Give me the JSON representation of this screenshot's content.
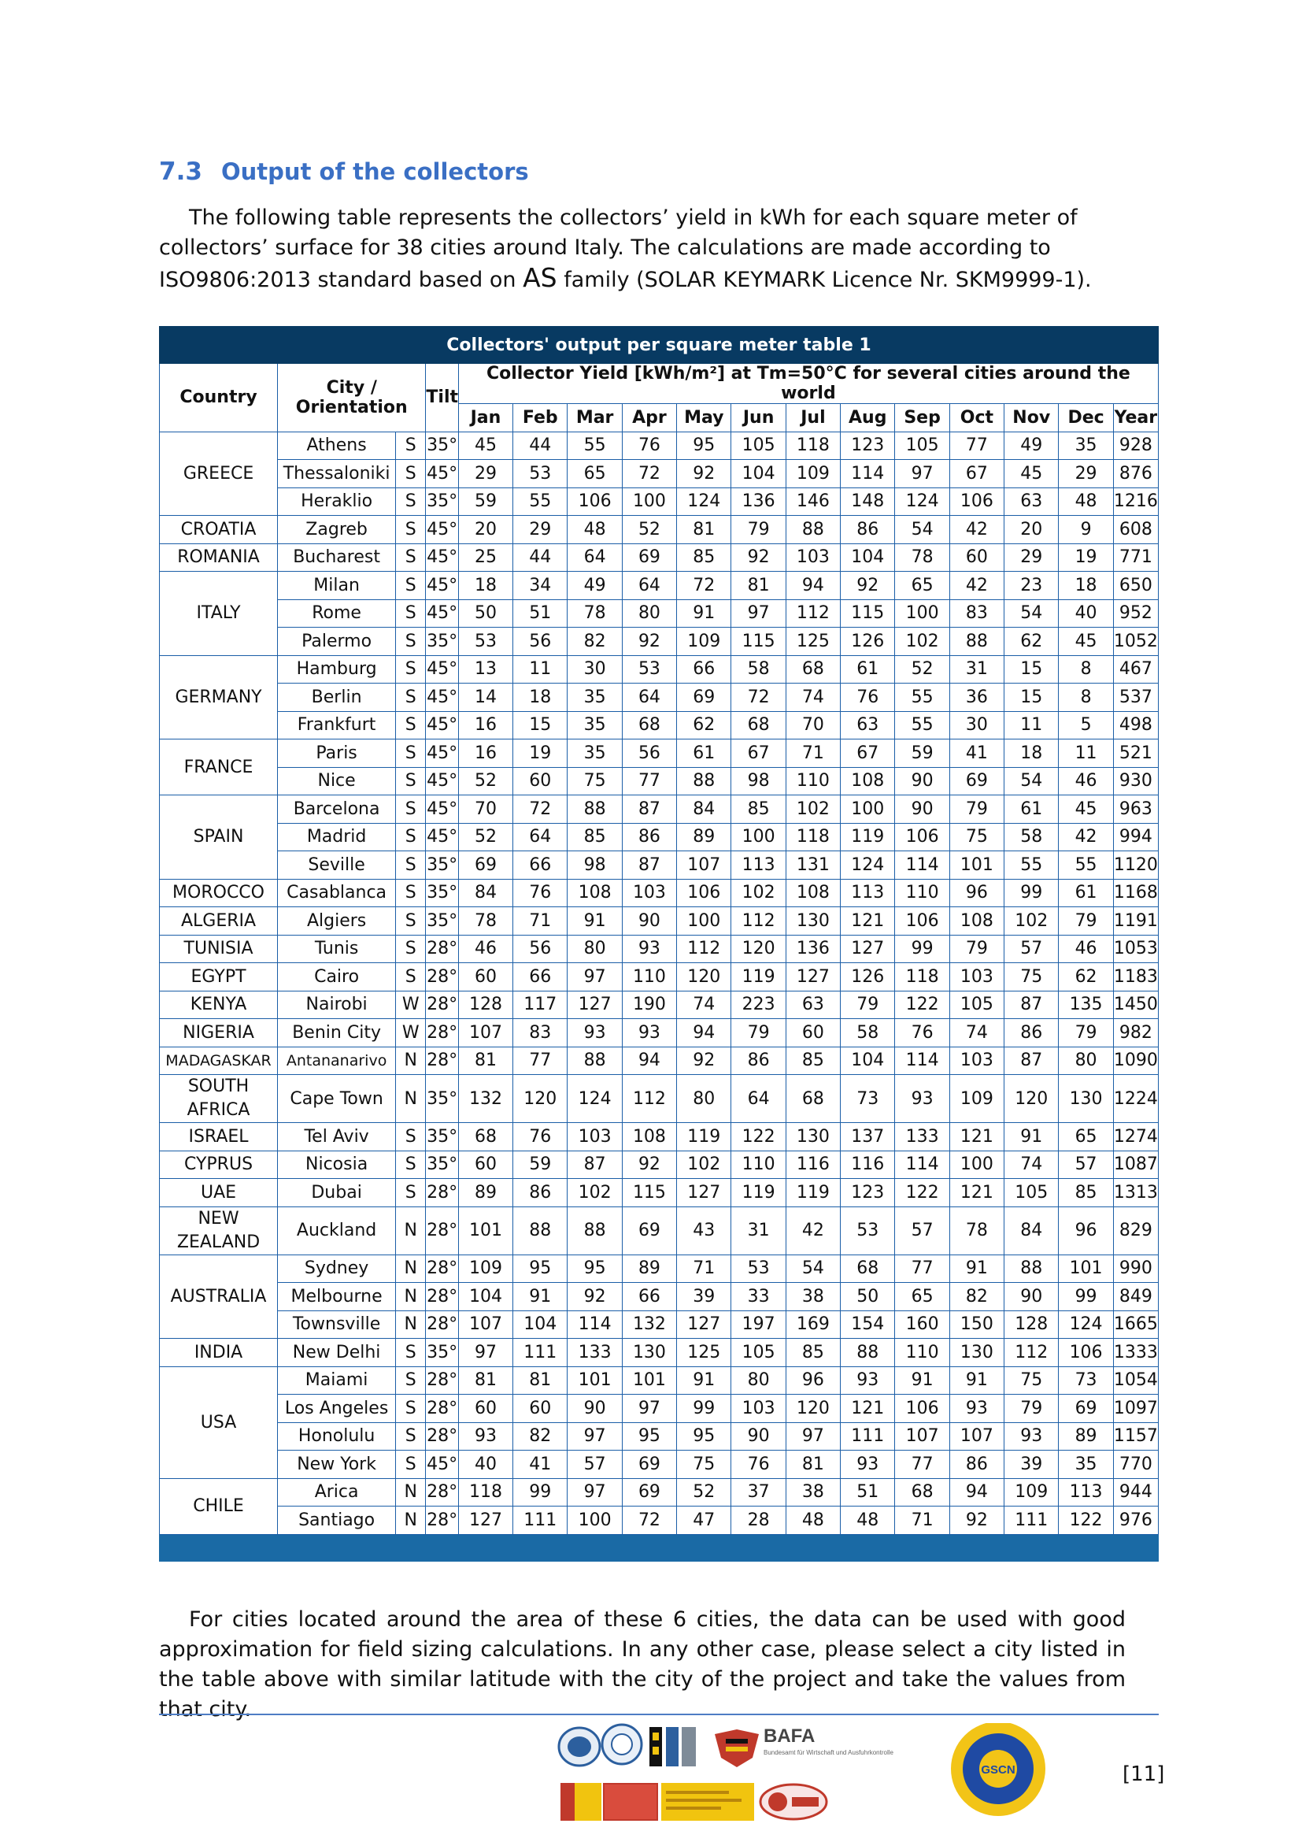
{
  "section": {
    "number": "7.3",
    "title": "Output of the collectors"
  },
  "intro": {
    "line1": "The following table represents the collectors’ yield in kWh for each square meter of collectors’ surface for 38 cities around Italy. The calculations are made according to ISO9806:2013 standard based on ",
    "family": "AS",
    "line2": " family (SOLAR KEYMARK Licence Nr. SKM9999-1)."
  },
  "table": {
    "title": "Collectors' output per square meter table 1",
    "headers": {
      "country": "Country",
      "city": "City / Orientation",
      "tilt": "Tilt",
      "yield": "Collector Yield [kWh/m²] at Tm=50°C for several cities around the world",
      "months": [
        "Jan",
        "Feb",
        "Mar",
        "Apr",
        "May",
        "Jun",
        "Jul",
        "Aug",
        "Sep",
        "Oct",
        "Nov",
        "Dec",
        "Year"
      ]
    },
    "groups": [
      {
        "country": "GREECE",
        "rows": [
          {
            "city": "Athens",
            "orient": "S",
            "tilt": "35°",
            "values": [
              45,
              44,
              55,
              76,
              95,
              105,
              118,
              123,
              105,
              77,
              49,
              35,
              928
            ]
          },
          {
            "city": "Thessaloniki",
            "orient": "S",
            "tilt": "45°",
            "values": [
              29,
              53,
              65,
              72,
              92,
              104,
              109,
              114,
              97,
              67,
              45,
              29,
              876
            ]
          },
          {
            "city": "Heraklio",
            "orient": "S",
            "tilt": "35°",
            "values": [
              59,
              55,
              106,
              100,
              124,
              136,
              146,
              148,
              124,
              106,
              63,
              48,
              1216
            ]
          }
        ]
      },
      {
        "country": "CROATIA",
        "rows": [
          {
            "city": "Zagreb",
            "orient": "S",
            "tilt": "45°",
            "values": [
              20,
              29,
              48,
              52,
              81,
              79,
              88,
              86,
              54,
              42,
              20,
              9,
              608
            ]
          }
        ]
      },
      {
        "country": "ROMANIA",
        "rows": [
          {
            "city": "Bucharest",
            "orient": "S",
            "tilt": "45°",
            "values": [
              25,
              44,
              64,
              69,
              85,
              92,
              103,
              104,
              78,
              60,
              29,
              19,
              771
            ]
          }
        ]
      },
      {
        "country": "ITALY",
        "rows": [
          {
            "city": "Milan",
            "orient": "S",
            "tilt": "45°",
            "values": [
              18,
              34,
              49,
              64,
              72,
              81,
              94,
              92,
              65,
              42,
              23,
              18,
              650
            ]
          },
          {
            "city": "Rome",
            "orient": "S",
            "tilt": "45°",
            "values": [
              50,
              51,
              78,
              80,
              91,
              97,
              112,
              115,
              100,
              83,
              54,
              40,
              952
            ]
          },
          {
            "city": "Palermo",
            "orient": "S",
            "tilt": "35°",
            "values": [
              53,
              56,
              82,
              92,
              109,
              115,
              125,
              126,
              102,
              88,
              62,
              45,
              1052
            ]
          }
        ]
      },
      {
        "country": "GERMANY",
        "rows": [
          {
            "city": "Hamburg",
            "orient": "S",
            "tilt": "45°",
            "values": [
              13,
              11,
              30,
              53,
              66,
              58,
              68,
              61,
              52,
              31,
              15,
              8,
              467
            ]
          },
          {
            "city": "Berlin",
            "orient": "S",
            "tilt": "45°",
            "values": [
              14,
              18,
              35,
              64,
              69,
              72,
              74,
              76,
              55,
              36,
              15,
              8,
              537
            ]
          },
          {
            "city": "Frankfurt",
            "orient": "S",
            "tilt": "45°",
            "values": [
              16,
              15,
              35,
              68,
              62,
              68,
              70,
              63,
              55,
              30,
              11,
              5,
              498
            ]
          }
        ]
      },
      {
        "country": "FRANCE",
        "rows": [
          {
            "city": "Paris",
            "orient": "S",
            "tilt": "45°",
            "values": [
              16,
              19,
              35,
              56,
              61,
              67,
              71,
              67,
              59,
              41,
              18,
              11,
              521
            ]
          },
          {
            "city": "Nice",
            "orient": "S",
            "tilt": "45°",
            "values": [
              52,
              60,
              75,
              77,
              88,
              98,
              110,
              108,
              90,
              69,
              54,
              46,
              930
            ]
          }
        ]
      },
      {
        "country": "SPAIN",
        "rows": [
          {
            "city": "Barcelona",
            "orient": "S",
            "tilt": "45°",
            "values": [
              70,
              72,
              88,
              87,
              84,
              85,
              102,
              100,
              90,
              79,
              61,
              45,
              963
            ]
          },
          {
            "city": "Madrid",
            "orient": "S",
            "tilt": "45°",
            "values": [
              52,
              64,
              85,
              86,
              89,
              100,
              118,
              119,
              106,
              75,
              58,
              42,
              994
            ]
          },
          {
            "city": "Seville",
            "orient": "S",
            "tilt": "35°",
            "values": [
              69,
              66,
              98,
              87,
              107,
              113,
              131,
              124,
              114,
              101,
              55,
              55,
              1120
            ]
          }
        ]
      },
      {
        "country": "MOROCCO",
        "rows": [
          {
            "city": "Casablanca",
            "orient": "S",
            "tilt": "35°",
            "values": [
              84,
              76,
              108,
              103,
              106,
              102,
              108,
              113,
              110,
              96,
              99,
              61,
              1168
            ]
          }
        ]
      },
      {
        "country": "ALGERIA",
        "rows": [
          {
            "city": "Algiers",
            "orient": "S",
            "tilt": "35°",
            "values": [
              78,
              71,
              91,
              90,
              100,
              112,
              130,
              121,
              106,
              108,
              102,
              79,
              1191
            ]
          }
        ]
      },
      {
        "country": "TUNISIA",
        "rows": [
          {
            "city": "Tunis",
            "orient": "S",
            "tilt": "28°",
            "values": [
              46,
              56,
              80,
              93,
              112,
              120,
              136,
              127,
              99,
              79,
              57,
              46,
              1053
            ]
          }
        ]
      },
      {
        "country": "EGYPT",
        "rows": [
          {
            "city": "Cairo",
            "orient": "S",
            "tilt": "28°",
            "values": [
              60,
              66,
              97,
              110,
              120,
              119,
              127,
              126,
              118,
              103,
              75,
              62,
              1183
            ]
          }
        ]
      },
      {
        "country": "KENYA",
        "rows": [
          {
            "city": "Nairobi",
            "orient": "W",
            "tilt": "28°",
            "values": [
              128,
              117,
              127,
              190,
              74,
              223,
              63,
              79,
              122,
              105,
              87,
              135,
              1450
            ]
          }
        ]
      },
      {
        "country": "NIGERIA",
        "rows": [
          {
            "city": "Benin City",
            "orient": "W",
            "tilt": "28°",
            "values": [
              107,
              83,
              93,
              93,
              94,
              79,
              60,
              58,
              76,
              74,
              86,
              79,
              982
            ]
          }
        ]
      },
      {
        "country": "MADAGASKAR",
        "small": true,
        "rows": [
          {
            "city": "Antananarivo",
            "orient": "N",
            "tilt": "28°",
            "values": [
              81,
              77,
              88,
              94,
              92,
              86,
              85,
              104,
              114,
              103,
              87,
              80,
              1090
            ]
          }
        ]
      },
      {
        "country": "SOUTH AFRICA",
        "tall": true,
        "rows": [
          {
            "city": "Cape Town",
            "orient": "N",
            "tilt": "35°",
            "values": [
              132,
              120,
              124,
              112,
              80,
              64,
              68,
              73,
              93,
              109,
              120,
              130,
              1224
            ]
          }
        ]
      },
      {
        "country": "ISRAEL",
        "rows": [
          {
            "city": "Tel Aviv",
            "orient": "S",
            "tilt": "35°",
            "values": [
              68,
              76,
              103,
              108,
              119,
              122,
              130,
              137,
              133,
              121,
              91,
              65,
              1274
            ]
          }
        ]
      },
      {
        "country": "CYPRUS",
        "rows": [
          {
            "city": "Nicosia",
            "orient": "S",
            "tilt": "35°",
            "values": [
              60,
              59,
              87,
              92,
              102,
              110,
              116,
              116,
              114,
              100,
              74,
              57,
              1087
            ]
          }
        ]
      },
      {
        "country": "UAE",
        "rows": [
          {
            "city": "Dubai",
            "orient": "S",
            "tilt": "28°",
            "values": [
              89,
              86,
              102,
              115,
              127,
              119,
              119,
              123,
              122,
              121,
              105,
              85,
              1313
            ]
          }
        ]
      },
      {
        "country": "NEW ZEALAND",
        "tall": true,
        "rows": [
          {
            "city": "Auckland",
            "orient": "N",
            "tilt": "28°",
            "values": [
              101,
              88,
              88,
              69,
              43,
              31,
              42,
              53,
              57,
              78,
              84,
              96,
              829
            ]
          }
        ]
      },
      {
        "country": "AUSTRALIA",
        "rows": [
          {
            "city": "Sydney",
            "orient": "N",
            "tilt": "28°",
            "values": [
              109,
              95,
              95,
              89,
              71,
              53,
              54,
              68,
              77,
              91,
              88,
              101,
              990
            ]
          },
          {
            "city": "Melbourne",
            "orient": "N",
            "tilt": "28°",
            "values": [
              104,
              91,
              92,
              66,
              39,
              33,
              38,
              50,
              65,
              82,
              90,
              99,
              849
            ]
          },
          {
            "city": "Townsville",
            "orient": "N",
            "tilt": "28°",
            "values": [
              107,
              104,
              114,
              132,
              127,
              197,
              169,
              154,
              160,
              150,
              128,
              124,
              1665
            ]
          }
        ]
      },
      {
        "country": "INDIA",
        "rows": [
          {
            "city": "New Delhi",
            "orient": "S",
            "tilt": "35°",
            "values": [
              97,
              111,
              133,
              130,
              125,
              105,
              85,
              88,
              110,
              130,
              112,
              106,
              1333
            ]
          }
        ]
      },
      {
        "country": "USA",
        "rows": [
          {
            "city": "Maiami",
            "orient": "S",
            "tilt": "28°",
            "values": [
              81,
              81,
              101,
              101,
              91,
              80,
              96,
              93,
              91,
              91,
              75,
              73,
              1054
            ]
          },
          {
            "city": "Los Angeles",
            "orient": "S",
            "tilt": "28°",
            "values": [
              60,
              60,
              90,
              97,
              99,
              103,
              120,
              121,
              106,
              93,
              79,
              69,
              1097
            ]
          },
          {
            "city": "Honolulu",
            "orient": "S",
            "tilt": "28°",
            "values": [
              93,
              82,
              97,
              95,
              95,
              90,
              97,
              111,
              107,
              107,
              93,
              89,
              1157
            ]
          },
          {
            "city": "New York",
            "orient": "S",
            "tilt": "45°",
            "values": [
              40,
              41,
              57,
              69,
              75,
              76,
              81,
              93,
              77,
              86,
              39,
              35,
              770
            ]
          }
        ]
      },
      {
        "country": "CHILE",
        "rows": [
          {
            "city": "Arica",
            "orient": "N",
            "tilt": "28°",
            "values": [
              118,
              99,
              97,
              69,
              52,
              37,
              38,
              51,
              68,
              94,
              109,
              113,
              944
            ]
          },
          {
            "city": "Santiago",
            "orient": "N",
            "tilt": "28°",
            "values": [
              127,
              111,
              100,
              72,
              47,
              28,
              48,
              48,
              71,
              92,
              111,
              122,
              976
            ]
          }
        ]
      }
    ]
  },
  "conclusion": "For cities located around the area of these 6 cities, the data can be used with good approximation for field sizing calculations. In any other case, please select a city listed in the table above with similar latitude with the city of the project and take the values from that city.",
  "footer": {
    "logo_text": {
      "bafa": "BAFA",
      "bafa_sub": "Bundesamt für Wirtschaft und Ausfuhrkontrolle",
      "gscn": "GSCN"
    },
    "page_number": "[11]"
  },
  "colors": {
    "heading": "#3a6fc4",
    "table_title_bg": "#083a62",
    "table_border": "#1b5ea7",
    "table_footer_bg": "#1a6aa5"
  }
}
